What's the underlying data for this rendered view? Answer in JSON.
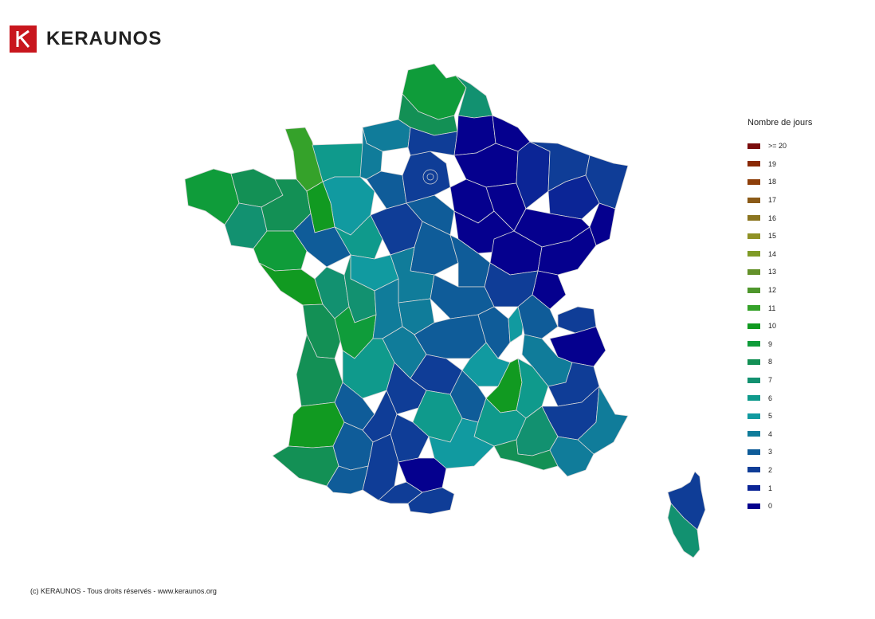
{
  "brand": {
    "name": "KERAUNOS",
    "logo_color": "#c8161d"
  },
  "legend": {
    "title": "Nombre de jours",
    "items": [
      {
        "label": ">= 20",
        "color": "#7a0c0c"
      },
      {
        "label": "19",
        "color": "#8a2a06"
      },
      {
        "label": "18",
        "color": "#8e3f0a"
      },
      {
        "label": "17",
        "color": "#8b5a17"
      },
      {
        "label": "16",
        "color": "#8b7520"
      },
      {
        "label": "15",
        "color": "#8f9125"
      },
      {
        "label": "14",
        "color": "#7f9b27"
      },
      {
        "label": "13",
        "color": "#64912a"
      },
      {
        "label": "12",
        "color": "#4e962c"
      },
      {
        "label": "11",
        "color": "#35a22a"
      },
      {
        "label": "10",
        "color": "#119a21"
      },
      {
        "label": "9",
        "color": "#0f9c3a"
      },
      {
        "label": "8",
        "color": "#139055"
      },
      {
        "label": "7",
        "color": "#129170"
      },
      {
        "label": "6",
        "color": "#0f9a8c"
      },
      {
        "label": "5",
        "color": "#119aa0"
      },
      {
        "label": "4",
        "color": "#107c9a"
      },
      {
        "label": "3",
        "color": "#0f5c99"
      },
      {
        "label": "2",
        "color": "#0f3d97"
      },
      {
        "label": "1",
        "color": "#0b2596"
      },
      {
        "label": "0",
        "color": "#05008e"
      }
    ]
  },
  "footer": {
    "copyright": "(c) KERAUNOS - Tous droits réservés - www.keraunos.org"
  }
}
